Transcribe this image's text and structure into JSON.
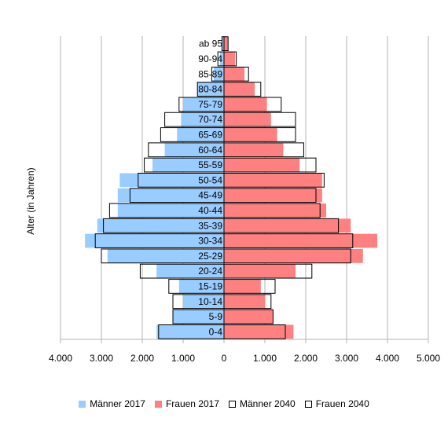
{
  "chart_data": {
    "type": "bar",
    "orientation": "horizontal",
    "ylabel": "Alter (in Jahren)",
    "categories": [
      "0-4",
      "5-9",
      "10-14",
      "15-19",
      "20-24",
      "25-29",
      "30-34",
      "35-39",
      "40-44",
      "45-49",
      "50-54",
      "55-59",
      "60-64",
      "65-69",
      "70-74",
      "75-79",
      "80-84",
      "85-89",
      "90-94",
      "ab 95"
    ],
    "series": [
      {
        "name": "Männer 2017",
        "side": "left",
        "style": "filled",
        "color": "#99ccff",
        "values": [
          1650,
          1250,
          1000,
          1100,
          1650,
          2850,
          3400,
          3100,
          2600,
          2600,
          2550,
          1750,
          1450,
          1150,
          1050,
          1000,
          650,
          250,
          100,
          40
        ]
      },
      {
        "name": "Frauen 2017",
        "side": "right",
        "style": "filled",
        "color": "#ff8080",
        "values": [
          1700,
          1200,
          1000,
          900,
          1750,
          3400,
          3750,
          3100,
          2500,
          2400,
          2400,
          1850,
          1450,
          1300,
          1150,
          1050,
          750,
          500,
          270,
          100
        ]
      },
      {
        "name": "Männer 2040",
        "side": "left",
        "style": "outline",
        "color": "#000000",
        "values": [
          1600,
          1250,
          1250,
          1350,
          2050,
          3000,
          3150,
          2950,
          2800,
          2300,
          2100,
          1950,
          1850,
          1550,
          1450,
          1100,
          650,
          300,
          150,
          50
        ]
      },
      {
        "name": "Frauen 2040",
        "side": "right",
        "style": "outline",
        "color": "#000000",
        "values": [
          1500,
          1200,
          1150,
          1250,
          2150,
          3100,
          3150,
          2800,
          2350,
          2250,
          2450,
          2250,
          1950,
          1750,
          1750,
          1400,
          900,
          600,
          300,
          100
        ]
      }
    ],
    "x_ticks": [
      "4.000",
      "3.000",
      "2.000",
      "1.000",
      "0",
      "1.000",
      "2.000",
      "3.000",
      "4.000",
      "5.000"
    ],
    "xlim": [
      -4000,
      5000
    ],
    "grid": true,
    "legend": "bottom"
  }
}
